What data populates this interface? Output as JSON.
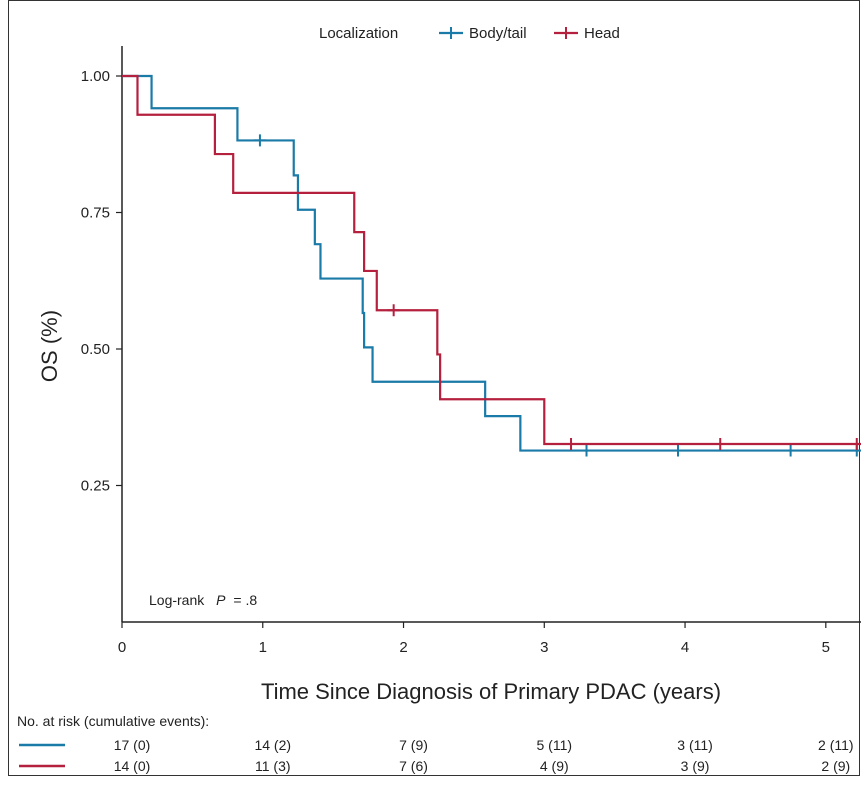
{
  "chart_data": {
    "type": "line",
    "subtype": "kaplan-meier",
    "title": "",
    "xlabel": "Time Since Diagnosis of Primary PDAC (years)",
    "ylabel": "OS (%)",
    "xlim": [
      0,
      5.25
    ],
    "ylim": [
      0,
      1.0
    ],
    "x_ticks": [
      0,
      1,
      2,
      3,
      4,
      5
    ],
    "x_tick_labels": [
      "0",
      "1",
      "2",
      "3",
      "4",
      "5"
    ],
    "y_ticks": [
      0.25,
      0.5,
      0.75,
      1.0
    ],
    "y_tick_labels": [
      "0.25",
      "0.50",
      "0.75",
      "1.00"
    ],
    "grid": false,
    "legend": {
      "title": "Localization",
      "placement": "top-center",
      "entries": [
        "Body/tail",
        "Head"
      ]
    },
    "annotation": {
      "prefix": "Log-rank",
      "italic": "P",
      "suffix": "= .8"
    },
    "series": [
      {
        "name": "Body/tail",
        "color": "#1a7aa8",
        "steps": [
          [
            0,
            1.0
          ],
          [
            0.21,
            0.941
          ],
          [
            0.82,
            0.882
          ],
          [
            1.22,
            0.818
          ],
          [
            1.25,
            0.755
          ],
          [
            1.37,
            0.692
          ],
          [
            1.41,
            0.629
          ],
          [
            1.71,
            0.566
          ],
          [
            1.72,
            0.503
          ],
          [
            1.78,
            0.44
          ],
          [
            2.58,
            0.377
          ],
          [
            2.83,
            0.314
          ],
          [
            5.25,
            0.314
          ]
        ],
        "censored": [
          [
            0.98,
            0.882
          ],
          [
            3.3,
            0.314
          ],
          [
            3.95,
            0.314
          ],
          [
            4.75,
            0.314
          ],
          [
            5.22,
            0.314
          ]
        ]
      },
      {
        "name": "Head",
        "color": "#b5203f",
        "steps": [
          [
            0,
            1.0
          ],
          [
            0.11,
            0.929
          ],
          [
            0.66,
            0.857
          ],
          [
            0.79,
            0.786
          ],
          [
            1.65,
            0.714
          ],
          [
            1.72,
            0.643
          ],
          [
            1.81,
            0.571
          ],
          [
            2.24,
            0.49
          ],
          [
            2.26,
            0.408
          ],
          [
            3.0,
            0.326
          ],
          [
            5.25,
            0.326
          ]
        ],
        "censored": [
          [
            1.93,
            0.571
          ],
          [
            3.19,
            0.326
          ],
          [
            4.25,
            0.326
          ],
          [
            5.22,
            0.326
          ]
        ]
      }
    ],
    "risk_table": {
      "title": "No. at risk (cumulative events):",
      "rows": [
        {
          "series": "Body/tail",
          "values": [
            "17 (0)",
            "14 (2)",
            "7 (9)",
            "5 (11)",
            "3 (11)",
            "2 (11)"
          ]
        },
        {
          "series": "Head",
          "values": [
            "14 (0)",
            "11 (3)",
            "7 (6)",
            "4 (9)",
            "3 (9)",
            "2 (9)"
          ]
        }
      ]
    }
  }
}
